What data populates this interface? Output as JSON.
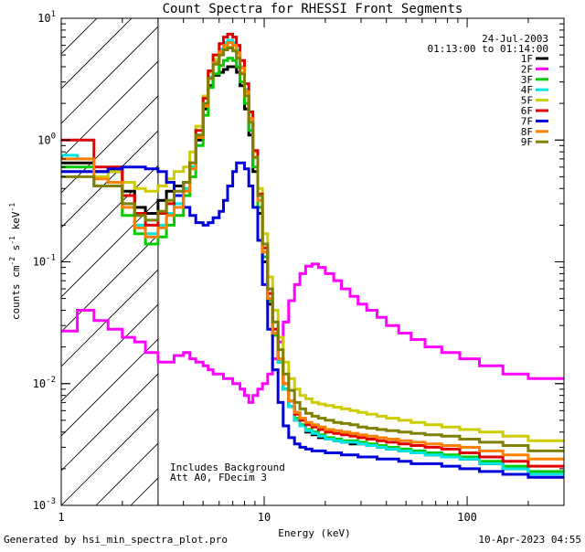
{
  "chart_data": {
    "type": "line",
    "title": "Count Spectra for RHESSI Front Segments",
    "xlabel": "Energy (keV)",
    "ylabel_main": "counts cm",
    "ylabel_exp1": "-2",
    "ylabel_mid": " s",
    "ylabel_exp2": "-1",
    "ylabel_mid2": " keV",
    "ylabel_exp3": "-1",
    "xscale": "log",
    "yscale": "log",
    "xlim": [
      1,
      300
    ],
    "ylim": [
      0.001,
      10
    ],
    "x_tick_labels": [
      {
        "value": 1,
        "label": "1"
      },
      {
        "value": 10,
        "label": "10"
      },
      {
        "value": 100,
        "label": "100"
      }
    ],
    "y_tick_labels": [
      {
        "value": 0.001,
        "base": "10",
        "exp": "-3"
      },
      {
        "value": 0.01,
        "base": "10",
        "exp": "-2"
      },
      {
        "value": 0.1,
        "base": "10",
        "exp": "-1"
      },
      {
        "value": 1,
        "base": "10",
        "exp": "0"
      },
      {
        "value": 10,
        "base": "10",
        "exp": "1"
      }
    ],
    "hatched_region": {
      "xmin": 1,
      "xmax": 3
    },
    "legend_header": [
      "24-Jul-2003",
      "01:13:00 to 01:14:00"
    ],
    "annotations": [
      "Includes Background",
      "Att A0, FDecim 3"
    ],
    "footer_left": "Generated by hsi_min_spectra_plot.pro",
    "footer_right": "10-Apr-2023 04:55",
    "series": [
      {
        "name": "1F",
        "color": "#000000",
        "values": [
          0.65,
          0.65,
          0.55,
          0.55,
          0.38,
          0.28,
          0.25,
          0.32,
          0.38,
          0.42,
          0.45,
          0.6,
          1.0,
          1.8,
          2.8,
          3.4,
          3.6,
          3.8,
          4.0,
          4.0,
          3.6,
          2.8,
          1.8,
          1.1,
          0.55,
          0.25,
          0.1,
          0.045,
          0.025,
          0.015,
          0.009,
          0.0065,
          0.005,
          0.0045,
          0.004,
          0.0038,
          0.0036,
          0.0035,
          0.0034,
          0.0033,
          0.0032,
          0.0032,
          0.0031,
          0.003,
          0.0029,
          0.0028,
          0.0027,
          0.0026,
          0.0025,
          0.0024,
          0.0022,
          0.002,
          0.0018
        ]
      },
      {
        "name": "2F",
        "color": "#ff00ff",
        "values": [
          0.027,
          0.04,
          0.033,
          0.028,
          0.024,
          0.022,
          0.018,
          0.015,
          0.015,
          0.017,
          0.018,
          0.016,
          0.015,
          0.014,
          0.013,
          0.012,
          0.012,
          0.011,
          0.011,
          0.01,
          0.01,
          0.009,
          0.008,
          0.007,
          0.008,
          0.009,
          0.01,
          0.012,
          0.016,
          0.022,
          0.032,
          0.048,
          0.065,
          0.08,
          0.092,
          0.096,
          0.09,
          0.08,
          0.07,
          0.06,
          0.052,
          0.045,
          0.04,
          0.035,
          0.03,
          0.026,
          0.023,
          0.02,
          0.018,
          0.016,
          0.014,
          0.012,
          0.011
        ]
      },
      {
        "name": "3F",
        "color": "#00cc00",
        "values": [
          0.6,
          0.6,
          0.42,
          0.42,
          0.24,
          0.17,
          0.14,
          0.16,
          0.2,
          0.24,
          0.35,
          0.5,
          0.9,
          1.6,
          2.7,
          3.5,
          4.1,
          4.5,
          4.7,
          4.5,
          4.0,
          3.0,
          2.0,
          1.2,
          0.6,
          0.28,
          0.11,
          0.048,
          0.025,
          0.015,
          0.009,
          0.0065,
          0.0052,
          0.0046,
          0.0042,
          0.004,
          0.0038,
          0.0036,
          0.0035,
          0.0034,
          0.0034,
          0.0033,
          0.0032,
          0.0031,
          0.003,
          0.0029,
          0.0028,
          0.0027,
          0.0026,
          0.0025,
          0.0023,
          0.0021,
          0.0019
        ]
      },
      {
        "name": "4F",
        "color": "#00e5e5",
        "values": [
          0.75,
          0.7,
          0.5,
          0.45,
          0.3,
          0.2,
          0.17,
          0.2,
          0.25,
          0.3,
          0.4,
          0.6,
          1.1,
          2.0,
          3.3,
          4.5,
          5.6,
          6.3,
          6.6,
          6.3,
          5.4,
          4.0,
          2.6,
          1.5,
          0.72,
          0.32,
          0.12,
          0.05,
          0.026,
          0.015,
          0.009,
          0.0065,
          0.005,
          0.0045,
          0.0041,
          0.0039,
          0.0037,
          0.0035,
          0.0034,
          0.0033,
          0.0033,
          0.0032,
          0.0031,
          0.003,
          0.0029,
          0.0028,
          0.0027,
          0.0026,
          0.0025,
          0.0024,
          0.0022,
          0.002,
          0.0018
        ]
      },
      {
        "name": "5F",
        "color": "#cccc00",
        "values": [
          0.55,
          0.55,
          0.5,
          0.55,
          0.45,
          0.4,
          0.38,
          0.42,
          0.48,
          0.55,
          0.6,
          0.8,
          1.3,
          2.3,
          3.6,
          4.6,
          5.3,
          5.7,
          5.8,
          5.5,
          4.8,
          3.6,
          2.4,
          1.5,
          0.8,
          0.4,
          0.17,
          0.075,
          0.04,
          0.024,
          0.015,
          0.011,
          0.009,
          0.008,
          0.0075,
          0.007,
          0.0068,
          0.0066,
          0.0064,
          0.0062,
          0.006,
          0.0058,
          0.0056,
          0.0054,
          0.0052,
          0.005,
          0.0048,
          0.0046,
          0.0044,
          0.0042,
          0.004,
          0.0037,
          0.0034
        ]
      },
      {
        "name": "6F",
        "color": "#e00000",
        "values": [
          1.0,
          1.0,
          0.6,
          0.6,
          0.35,
          0.25,
          0.2,
          0.25,
          0.3,
          0.35,
          0.45,
          0.65,
          1.2,
          2.2,
          3.7,
          5.0,
          6.2,
          7.0,
          7.4,
          7.0,
          6.0,
          4.5,
          2.9,
          1.7,
          0.82,
          0.36,
          0.13,
          0.055,
          0.028,
          0.016,
          0.01,
          0.0072,
          0.0056,
          0.005,
          0.0046,
          0.0044,
          0.0042,
          0.004,
          0.0039,
          0.0038,
          0.0037,
          0.0036,
          0.0035,
          0.0034,
          0.0033,
          0.0032,
          0.0031,
          0.003,
          0.0029,
          0.0027,
          0.0025,
          0.0023,
          0.0021
        ]
      },
      {
        "name": "7F",
        "color": "#0000dd",
        "values": [
          0.55,
          0.55,
          0.55,
          0.58,
          0.6,
          0.6,
          0.58,
          0.55,
          0.45,
          0.35,
          0.28,
          0.24,
          0.21,
          0.2,
          0.21,
          0.23,
          0.26,
          0.32,
          0.42,
          0.55,
          0.65,
          0.65,
          0.58,
          0.42,
          0.28,
          0.15,
          0.065,
          0.028,
          0.013,
          0.007,
          0.0045,
          0.0036,
          0.0032,
          0.003,
          0.0029,
          0.0028,
          0.0028,
          0.0027,
          0.0027,
          0.0026,
          0.0026,
          0.0025,
          0.0025,
          0.0024,
          0.0024,
          0.0023,
          0.0022,
          0.0022,
          0.0021,
          0.002,
          0.0019,
          0.0018,
          0.0017
        ]
      },
      {
        "name": "8F",
        "color": "#ff7f00",
        "values": [
          0.7,
          0.7,
          0.48,
          0.45,
          0.28,
          0.19,
          0.16,
          0.19,
          0.24,
          0.28,
          0.38,
          0.58,
          1.05,
          1.9,
          3.2,
          4.3,
          5.3,
          6.0,
          6.3,
          6.0,
          5.2,
          3.9,
          2.5,
          1.5,
          0.72,
          0.32,
          0.12,
          0.05,
          0.026,
          0.016,
          0.01,
          0.0072,
          0.0058,
          0.0052,
          0.0048,
          0.0046,
          0.0044,
          0.0042,
          0.0041,
          0.004,
          0.0039,
          0.0038,
          0.0037,
          0.0036,
          0.0035,
          0.0034,
          0.0033,
          0.0032,
          0.0031,
          0.003,
          0.0028,
          0.0026,
          0.0024
        ]
      },
      {
        "name": "9F",
        "color": "#808000",
        "values": [
          0.5,
          0.5,
          0.42,
          0.42,
          0.3,
          0.24,
          0.22,
          0.26,
          0.32,
          0.38,
          0.45,
          0.65,
          1.1,
          2.0,
          3.2,
          4.2,
          5.0,
          5.5,
          5.7,
          5.4,
          4.7,
          3.5,
          2.3,
          1.4,
          0.72,
          0.35,
          0.14,
          0.06,
          0.032,
          0.019,
          0.012,
          0.0088,
          0.007,
          0.0062,
          0.0057,
          0.0054,
          0.0052,
          0.005,
          0.0048,
          0.0047,
          0.0046,
          0.0044,
          0.0043,
          0.0042,
          0.0041,
          0.004,
          0.0039,
          0.0038,
          0.0037,
          0.0035,
          0.0033,
          0.0031,
          0.0028
        ]
      }
    ],
    "energy_edges": [
      1.0,
      1.2,
      1.45,
      1.7,
      2.0,
      2.3,
      2.6,
      3.0,
      3.3,
      3.6,
      4.0,
      4.3,
      4.6,
      5.0,
      5.3,
      5.6,
      6.0,
      6.3,
      6.6,
      7.0,
      7.3,
      7.6,
      8.0,
      8.4,
      8.8,
      9.3,
      9.8,
      10.4,
      11.0,
      11.7,
      12.4,
      13.2,
      14.1,
      15.0,
      16.0,
      17.2,
      18.5,
      20.0,
      22.0,
      24.0,
      26.5,
      29.0,
      32.0,
      36.0,
      40.0,
      46.0,
      53.0,
      62.0,
      75.0,
      92.0,
      115.0,
      150.0,
      200.0,
      300.0
    ]
  }
}
